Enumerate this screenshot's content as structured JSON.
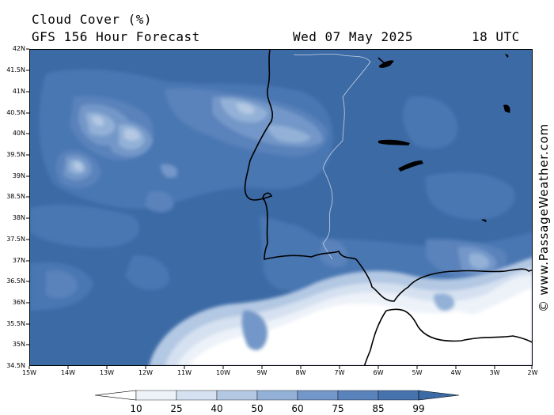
{
  "header": {
    "title": "Cloud Cover (%)",
    "subtitle": "GFS 156 Hour Forecast",
    "date": "Wed 07 May 2025",
    "time": "18 UTC"
  },
  "map": {
    "lat_labels": [
      "42N",
      "41.5N",
      "41N",
      "40.5N",
      "40N",
      "39.5N",
      "39N",
      "38.5N",
      "38N",
      "37.5N",
      "37N",
      "36.5N",
      "36N",
      "35.5N",
      "35N",
      "34.5N"
    ],
    "lon_labels": [
      "15W",
      "14W",
      "13W",
      "12W",
      "11W",
      "10W",
      "9W",
      "8W",
      "7W",
      "6W",
      "5W",
      "4W",
      "3W",
      "2W"
    ],
    "lat_range": [
      34.5,
      42
    ],
    "lon_range": [
      -15,
      -2
    ]
  },
  "colorbar": {
    "labels": [
      "10",
      "25",
      "40",
      "50",
      "60",
      "75",
      "85",
      "99"
    ],
    "colors": [
      "#ffffff",
      "#edf2f9",
      "#d5e1f0",
      "#b3c8e3",
      "#93b1d7",
      "#7397c8",
      "#5a82bb",
      "#4672ae",
      "#3c6aa5"
    ]
  },
  "credit": "© www.PassageWeather.com"
}
